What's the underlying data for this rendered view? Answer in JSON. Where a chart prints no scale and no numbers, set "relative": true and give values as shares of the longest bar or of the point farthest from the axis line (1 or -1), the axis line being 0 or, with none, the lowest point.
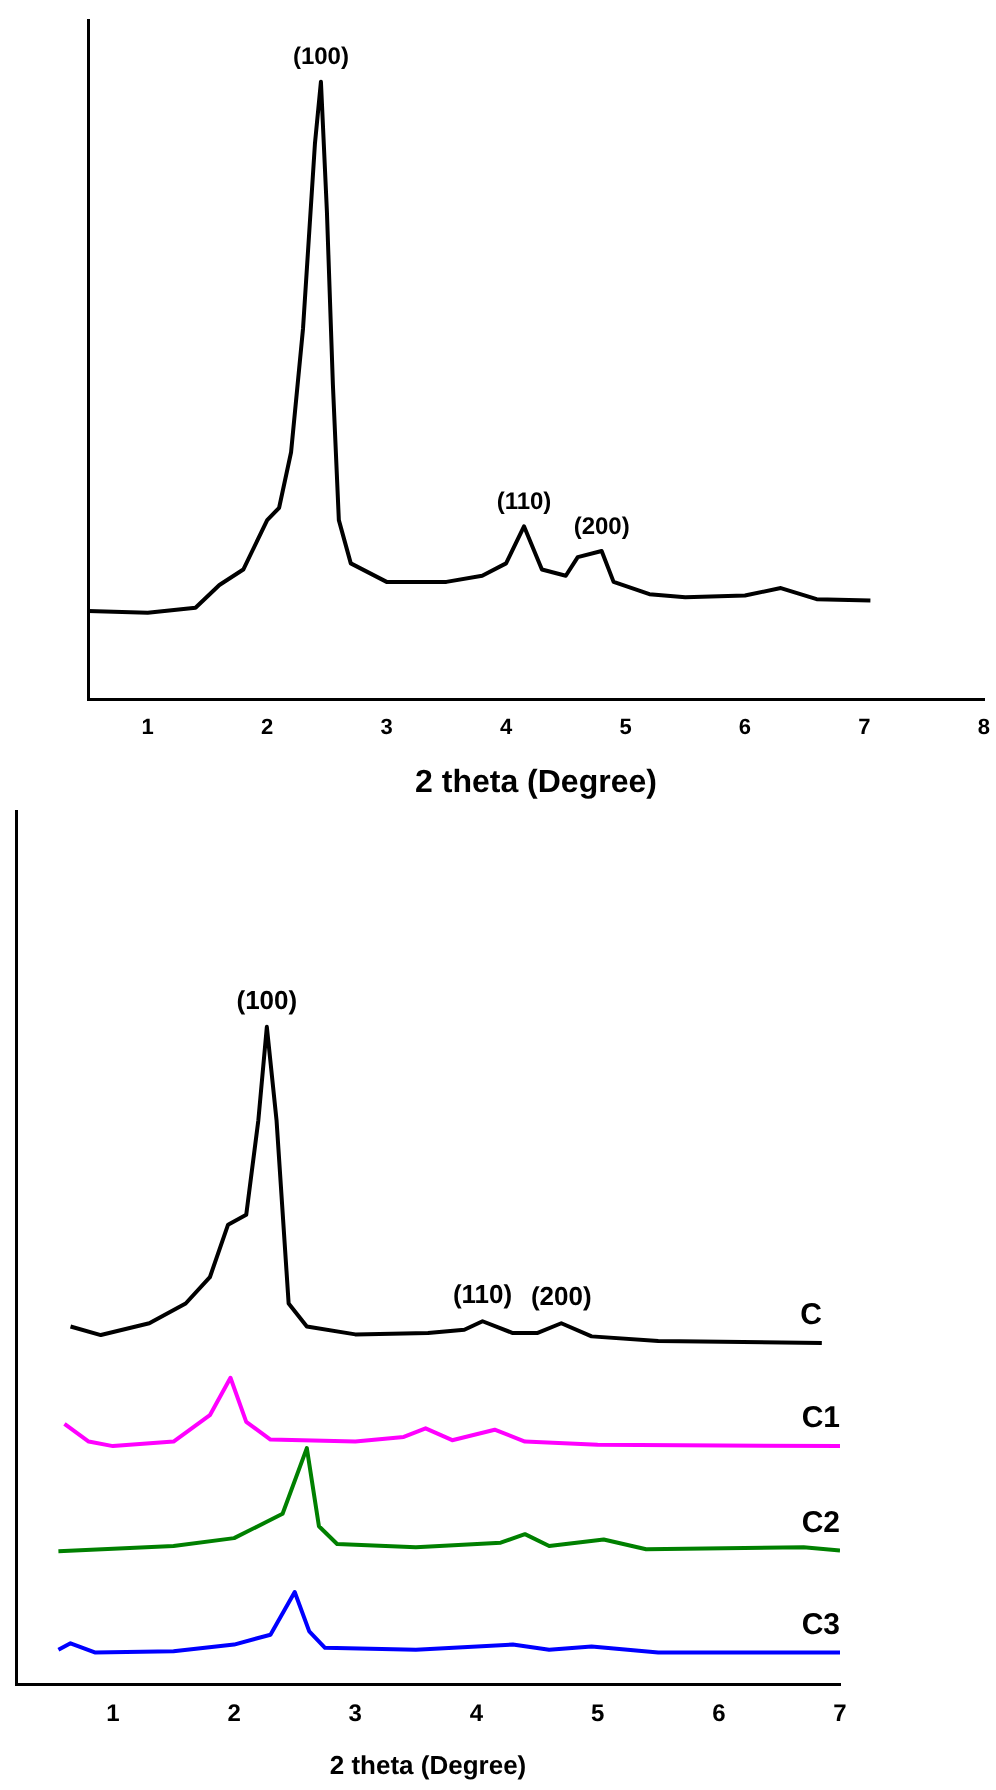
{
  "chart_data": [
    {
      "type": "line",
      "relative": true,
      "xlabel": "2 theta (Degree)",
      "xlim": [
        0.5,
        8
      ],
      "xticks": [
        1,
        2,
        3,
        4,
        5,
        6,
        7,
        8
      ],
      "tick_labels": "x",
      "grid": false,
      "legend": false,
      "marker": "none",
      "line_style": "solid",
      "annotations": [
        {
          "text": "(100)",
          "x": 2.45,
          "y": 1.0
        },
        {
          "text": "(110)",
          "x": 4.15,
          "y": 0.28
        },
        {
          "text": "(200)",
          "x": 4.8,
          "y": 0.24
        }
      ],
      "series": [
        {
          "color": "#000000",
          "x": [
            0.5,
            1.0,
            1.4,
            1.6,
            1.8,
            2.0,
            2.1,
            2.2,
            2.3,
            2.4,
            2.45,
            2.5,
            2.55,
            2.6,
            2.7,
            3.0,
            3.5,
            3.8,
            4.0,
            4.15,
            4.3,
            4.5,
            4.6,
            4.8,
            4.9,
            5.2,
            5.5,
            6.0,
            6.3,
            6.6,
            7.05
          ],
          "values": [
            0.143,
            0.14,
            0.148,
            0.185,
            0.21,
            0.29,
            0.31,
            0.4,
            0.6,
            0.9,
            1.0,
            0.79,
            0.51,
            0.29,
            0.22,
            0.19,
            0.19,
            0.2,
            0.22,
            0.28,
            0.21,
            0.2,
            0.23,
            0.24,
            0.19,
            0.17,
            0.165,
            0.168,
            0.18,
            0.162,
            0.16
          ]
        }
      ]
    },
    {
      "type": "line",
      "relative": true,
      "xlabel": "2 theta (Degree)",
      "xlim": [
        0.2,
        7
      ],
      "xticks": [
        1,
        2,
        3,
        4,
        5,
        6,
        7
      ],
      "tick_labels": "x",
      "grid": false,
      "legend": false,
      "marker": "none",
      "line_style": "solid",
      "annotations": [
        {
          "text": "(100)",
          "x": 2.27,
          "y": 1.0
        },
        {
          "text": "(110)",
          "x": 4.05,
          "y": 0.552
        },
        {
          "text": "(200)",
          "x": 4.7,
          "y": 0.549
        }
      ],
      "series": [
        {
          "name": "C",
          "color": "#000000",
          "x": [
            0.65,
            0.9,
            1.3,
            1.6,
            1.8,
            1.95,
            2.1,
            2.2,
            2.27,
            2.35,
            2.45,
            2.6,
            3.0,
            3.6,
            3.9,
            4.05,
            4.3,
            4.5,
            4.7,
            4.95,
            5.5,
            6.85
          ],
          "values": [
            0.544,
            0.531,
            0.549,
            0.579,
            0.619,
            0.699,
            0.714,
            0.858,
            1.0,
            0.858,
            0.579,
            0.544,
            0.532,
            0.534,
            0.539,
            0.552,
            0.534,
            0.534,
            0.549,
            0.529,
            0.522,
            0.519
          ]
        },
        {
          "name": "C1",
          "color": "#ff00ff",
          "x": [
            0.6,
            0.8,
            1.0,
            1.5,
            1.8,
            1.97,
            2.1,
            2.3,
            3.0,
            3.4,
            3.58,
            3.8,
            4.15,
            4.4,
            5.0,
            7.0
          ],
          "values": [
            0.396,
            0.369,
            0.362,
            0.369,
            0.409,
            0.466,
            0.399,
            0.372,
            0.369,
            0.376,
            0.389,
            0.371,
            0.387,
            0.369,
            0.364,
            0.362
          ]
        },
        {
          "name": "C2",
          "color": "#008000",
          "x": [
            0.55,
            1.5,
            2.0,
            2.4,
            2.6,
            2.7,
            2.85,
            3.5,
            4.2,
            4.4,
            4.6,
            5.05,
            5.4,
            6.7,
            7.0
          ],
          "values": [
            0.202,
            0.21,
            0.222,
            0.259,
            0.359,
            0.24,
            0.213,
            0.208,
            0.215,
            0.228,
            0.21,
            0.22,
            0.205,
            0.208,
            0.203
          ]
        },
        {
          "name": "C3",
          "color": "#0000ff",
          "x": [
            0.55,
            0.65,
            0.85,
            1.5,
            2.0,
            2.3,
            2.5,
            2.62,
            2.75,
            3.5,
            4.3,
            4.6,
            4.95,
            5.5,
            7.0
          ],
          "values": [
            0.052,
            0.062,
            0.048,
            0.05,
            0.06,
            0.075,
            0.14,
            0.08,
            0.055,
            0.052,
            0.06,
            0.052,
            0.057,
            0.048,
            0.048
          ]
        }
      ]
    }
  ]
}
